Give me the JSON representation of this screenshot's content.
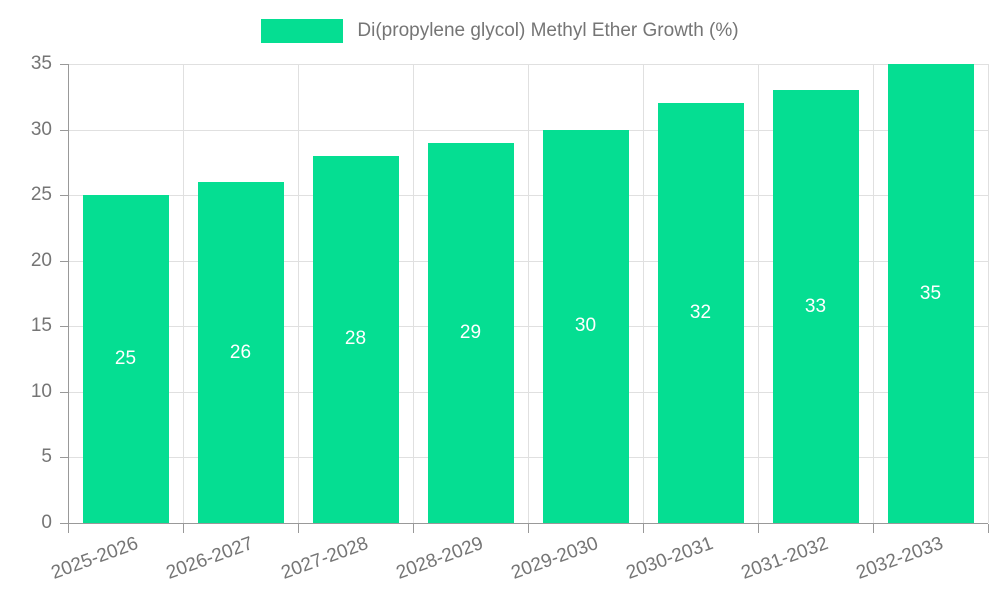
{
  "legend": {
    "label": "Di(propylene glycol) Methyl Ether Growth (%)"
  },
  "colors": {
    "bar": "#05de92",
    "grid_line": "#e0e0e0",
    "axis_line": "#999999",
    "tick_text": "#757575",
    "value_text": "#ffffff",
    "background": "#ffffff"
  },
  "chart_data": {
    "type": "bar",
    "title": "Di(propylene glycol) Methyl Ether Growth (%)",
    "series_name": "Di(propylene glycol) Methyl Ether Growth (%)",
    "categories": [
      "2025-2026",
      "2026-2027",
      "2027-2028",
      "2028-2029",
      "2029-2030",
      "2030-2031",
      "2031-2032",
      "2032-2033"
    ],
    "values": [
      25,
      26,
      28,
      29,
      30,
      32,
      33,
      35
    ],
    "value_labels": [
      "25",
      "26",
      "28",
      "29",
      "30",
      "32",
      "33",
      "35"
    ],
    "xlabel": "",
    "ylabel": "",
    "ylim": [
      0,
      35
    ],
    "yticks": [
      0,
      5,
      10,
      15,
      20,
      25,
      30,
      35
    ],
    "grid": true,
    "legend_position": "top",
    "bar_labels_position": "center",
    "x_label_rotation_deg": -20
  }
}
